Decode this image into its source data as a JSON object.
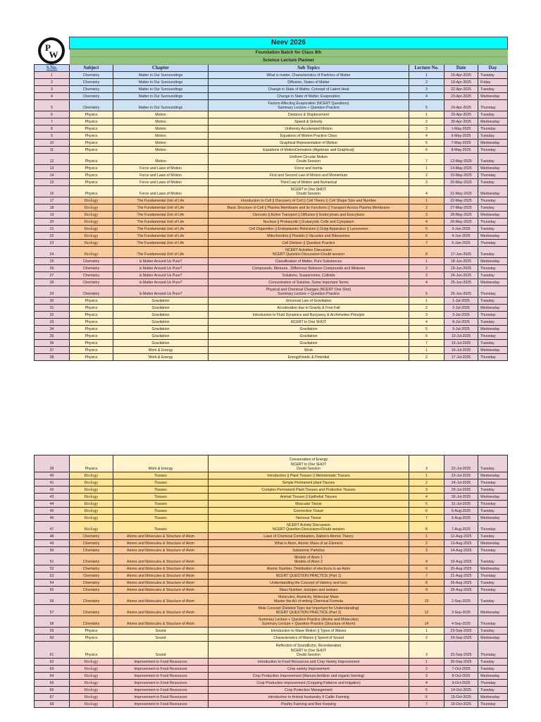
{
  "header": {
    "logo": "pw-logo-icon",
    "title": "Neev 2026",
    "subtitle1": "Foundation Batch for Class 9th",
    "subtitle2": "Science Lecture Planner"
  },
  "columns": [
    "S.No.",
    "Subject",
    "Chapter",
    "Sub Topics",
    "Lecture No.",
    "Date",
    "Day"
  ],
  "colors": {
    "title_bg": "#00ffff",
    "subtitle_bg": "#93c47d",
    "header_bg": "#c9daf8",
    "sno_date_day_bg": "#ead1dc",
    "chemistry_blue": "#cfe2f3",
    "physics_yellow": "#fff2cc",
    "biology_orange": "#f9cb9c",
    "chemistry_pink": "#f4cccc",
    "biology_gold": "#ffe599"
  },
  "page1_rows": [
    {
      "sno": "1",
      "subject": "Chemistry",
      "chapter": "Matter in Our Surroundings",
      "topic": "What  is matter, Characteristics of Particles of Matter",
      "lec": "1",
      "date": "15-Apr-2025",
      "day": "Tuesday",
      "tint": "blue",
      "h": 1
    },
    {
      "sno": "2",
      "subject": "Chemistry",
      "chapter": "Matter in Our Surroundings",
      "topic": "Diffusion, States of Matter",
      "lec": "2",
      "date": "18-Apr-2025",
      "day": "Friday",
      "tint": "blue",
      "h": 1
    },
    {
      "sno": "3",
      "subject": "Chemistry",
      "chapter": "Matter in Our Surroundings",
      "topic": "Change in State of Matter, Concept of Latent Heat",
      "lec": "3",
      "date": "22-Apr-2025",
      "day": "Tuesday",
      "tint": "blue",
      "h": 1
    },
    {
      "sno": "4",
      "subject": "Chemistry",
      "chapter": "Matter in Our Surroundings",
      "topic": "Change in State of Matter, Evaporation",
      "lec": "4",
      "date": "23-Apr-2025",
      "day": "Wednesday",
      "tint": "blue",
      "h": 1
    },
    {
      "sno": "5",
      "subject": "Chemistry",
      "chapter": "Matter in Our Surroundings",
      "topic": "Factors Affecting Evaporation (NCERT Questions)\nSummary Lecture + Question Practice",
      "lec": "5",
      "date": "24-Apr-2025",
      "day": "Thursday",
      "tint": "blue",
      "h": 2
    },
    {
      "sno": "6",
      "subject": "Physics",
      "chapter": "Motion",
      "topic": "Distance & Displacement",
      "lec": "1",
      "date": "29-Apr-2025",
      "day": "Tuesday",
      "tint": "yellow",
      "h": 1
    },
    {
      "sno": "7",
      "subject": "Physics",
      "chapter": "Motion",
      "topic": "Speed & Velocity",
      "lec": "2",
      "date": "30-Apr-2025",
      "day": "Wednesday",
      "tint": "yellow",
      "h": 1
    },
    {
      "sno": "8",
      "subject": "Physics",
      "chapter": "Motion",
      "topic": "Uniformly Accelerated Motion",
      "lec": "3",
      "date": "1-May-2025",
      "day": "Thursday",
      "tint": "yellow",
      "h": 1
    },
    {
      "sno": "9",
      "subject": "Physics",
      "chapter": "Motion",
      "topic": "Equations of Motion Practice Class",
      "lec": "4",
      "date": "6-May-2025",
      "day": "Tuesday",
      "tint": "yellow",
      "h": 1
    },
    {
      "sno": "10",
      "subject": "Physics",
      "chapter": "Motion",
      "topic": "Graphical Representation of Motion",
      "lec": "5",
      "date": "7-May-2025",
      "day": "Wednesday",
      "tint": "yellow",
      "h": 1
    },
    {
      "sno": "11",
      "subject": "Physics",
      "chapter": "Motion",
      "topic": "Equations of MotionDerivation (Algebraic and Graphical)",
      "lec": "6",
      "date": "8-May-2025",
      "day": "Thursday",
      "tint": "yellow",
      "h": 1
    },
    {
      "sno": "12",
      "subject": "Physics",
      "chapter": "Motion",
      "topic": "Uniform Circular Motion\nDoubt Session",
      "lec": "7",
      "date": "13-May-2025",
      "day": "Tuesday",
      "tint": "yellow",
      "h": 2
    },
    {
      "sno": "13",
      "subject": "Physics",
      "chapter": "Force and Laws of Motion",
      "topic": "Force and Inertia",
      "lec": "1",
      "date": "14-May-2025",
      "day": "Wednesday",
      "tint": "yellow",
      "h": 1
    },
    {
      "sno": "14",
      "subject": "Physics",
      "chapter": "Force and Laws of Motion",
      "topic": "First and Second Law of Motion and Momentum",
      "lec": "2",
      "date": "15-May-2025",
      "day": "Thursday",
      "tint": "yellow",
      "h": 1
    },
    {
      "sno": "15",
      "subject": "Physics",
      "chapter": "Force and Laws of Motion",
      "topic": "Third Law of Motion and Numerical",
      "lec": "3",
      "date": "20-May-2025",
      "day": "Tuesday",
      "tint": "yellow",
      "h": 1
    },
    {
      "sno": "16",
      "subject": "Physics",
      "chapter": "Force and Laws of Motion",
      "topic": "NCERT in One SHOT\nDoubt Session",
      "lec": "4",
      "date": "21-May-2025",
      "day": "Wednesday",
      "tint": "yellow",
      "h": 2
    },
    {
      "sno": "17",
      "subject": "Biology",
      "chapter": "The Fundamental Unit of Life",
      "topic": "Introduction to Cell || Discovery of Cell || Cell Theory || Cell Shape Size and Number",
      "lec": "1",
      "date": "22-May-2025",
      "day": "Thursday",
      "tint": "orange",
      "h": 1
    },
    {
      "sno": "18",
      "subject": "Biology",
      "chapter": "The Fundamental Unit of Life",
      "topic": "Basic Structure of Cell || Plasma Membrane and its Functions || Transport Across Plasma Membrane",
      "lec": "2",
      "date": "27-May-2025",
      "day": "Tuesday",
      "tint": "orange",
      "h": 1
    },
    {
      "sno": "19",
      "subject": "Biology",
      "chapter": "The Fundamental Unit of Life",
      "topic": "Osmosis || Active Transport || Diffusion || Endocytosis and Exocytosis",
      "lec": "3",
      "date": "28-May-2025",
      "day": "Wednesday",
      "tint": "orange",
      "h": 1
    },
    {
      "sno": "20",
      "subject": "Biology",
      "chapter": "The Fundamental Unit of Life",
      "topic": "Nucleus || Prokaryotic || Eukaryotic Cells and Cytoplasm",
      "lec": "4",
      "date": "29-May-2025",
      "day": "Thursday",
      "tint": "orange",
      "h": 1
    },
    {
      "sno": "21",
      "subject": "Biology",
      "chapter": "The Fundamental Unit of Life",
      "topic": "Cell Organelles || Endoplasmic Reticulum || Golgi Apparatus || Lysosomes",
      "lec": "5",
      "date": "3-Jun-2025",
      "day": "Tuesday",
      "tint": "orange",
      "h": 1
    },
    {
      "sno": "22",
      "subject": "Biology",
      "chapter": "The Fundamental Unit of Life",
      "topic": "Mitochondria || Plastids || Vacuoles and Ribosomes",
      "lec": "6",
      "date": "4-Jun-2025",
      "day": "Wednesday",
      "tint": "orange",
      "h": 1
    },
    {
      "sno": "23",
      "subject": "Biology",
      "chapter": "The Fundamental Unit of Life",
      "topic": "Cell Division || Question Practice",
      "lec": "7",
      "date": "5-Jun-2025",
      "day": "Thursday",
      "tint": "orange",
      "h": 1
    },
    {
      "sno": "24",
      "subject": "Biology",
      "chapter": "The Fundamental Unit of Life",
      "topic": "NCERT Activities Discussion\nNCERT Question Discussion+Doubt session",
      "lec": "8",
      "date": "17-Jun-2025",
      "day": "Tuesday",
      "tint": "orange",
      "h": 2
    },
    {
      "sno": "25",
      "subject": "Chemistry",
      "chapter": "Is Matter Around Us Pure?",
      "topic": "Classification of Matter, Pure Substances",
      "lec": "1",
      "date": "18-Jun-2025",
      "day": "Wednesday",
      "tint": "pink",
      "h": 1
    },
    {
      "sno": "26",
      "subject": "Chemistry",
      "chapter": "Is Matter Around Us Pure?",
      "topic": "Compounds, Mixtures , Difference Between Compounds and Mixtures",
      "lec": "2",
      "date": "19-Jun-2025",
      "day": "Thursday",
      "tint": "pink",
      "h": 1
    },
    {
      "sno": "27",
      "subject": "Chemistry",
      "chapter": "Is Matter Around Us Pure?",
      "topic": "Solutions, Suspensions, Colloids",
      "lec": "3",
      "date": "24-Jun-2025",
      "day": "Tuesday",
      "tint": "pink",
      "h": 1
    },
    {
      "sno": "28",
      "subject": "Chemistry",
      "chapter": "Is Matter Around Us Pure?",
      "topic": "Concentration of Solution, Some Important Terms",
      "lec": "4",
      "date": "25-Jun-2025",
      "day": "Wednesday",
      "tint": "pink",
      "h": 1
    },
    {
      "sno": "29",
      "subject": "Chemistry",
      "chapter": "Is Matter Around Us Pure?",
      "topic": "Physical and Chemical Changes (NCERT One Shot)\nSummary Lecture + Question Practice",
      "lec": "5",
      "date": "26-Jun-2025",
      "day": "Thursday",
      "tint": "pink",
      "h": 2
    },
    {
      "sno": "30",
      "subject": "Physics",
      "chapter": "Gravitation",
      "topic": "Universal Law of Gravitation",
      "lec": "1",
      "date": "1-Jul-2025",
      "day": "Tuesday",
      "tint": "yellow",
      "h": 1
    },
    {
      "sno": "31",
      "subject": "Physics",
      "chapter": "Gravitation",
      "topic": "Acceleration due to Gravity & Free Fall",
      "lec": "2",
      "date": "2-Jul-2025",
      "day": "Wednesday",
      "tint": "yellow",
      "h": 1
    },
    {
      "sno": "32",
      "subject": "Physics",
      "chapter": "Gravitation",
      "topic": "Introduction to Fluid Dynamics and Buoyancy & Archimedes Principle",
      "lec": "3",
      "date": "3-Jul-2025",
      "day": "Thursday",
      "tint": "yellow",
      "h": 1
    },
    {
      "sno": "33",
      "subject": "Physics",
      "chapter": "Gravitation",
      "topic": "NCERT in One SHOT",
      "lec": "4",
      "date": "8-Jul-2025",
      "day": "Tuesday",
      "tint": "yellow",
      "h": 1
    },
    {
      "sno": "34",
      "subject": "Physics",
      "chapter": "Gravitation",
      "topic": "Gravitation",
      "lec": "5",
      "date": "9-Jul-2025",
      "day": "Wednesday",
      "tint": "yellow",
      "h": 1
    },
    {
      "sno": "35",
      "subject": "Physics",
      "chapter": "Gravitation",
      "topic": "Gravitation",
      "lec": "6",
      "date": "10-Jul-2025",
      "day": "Thursday",
      "tint": "yellow",
      "h": 1
    },
    {
      "sno": "36",
      "subject": "Physics",
      "chapter": "Gravitation",
      "topic": "Gravitation",
      "lec": "7",
      "date": "15-Jul-2025",
      "day": "Tuesday",
      "tint": "yellow",
      "h": 1
    },
    {
      "sno": "37",
      "subject": "Physics",
      "chapter": "Work & Energy",
      "topic": "Work",
      "lec": "1",
      "date": "16-Jul-2025",
      "day": "Wednesday",
      "tint": "yellow",
      "h": 1
    },
    {
      "sno": "38",
      "subject": "Physics",
      "chapter": "Work & Energy",
      "topic": "EnergyKinetic & Potential",
      "lec": "2",
      "date": "17-Jul-2025",
      "day": "Thursday",
      "tint": "yellow",
      "h": 1
    }
  ],
  "page2_rows": [
    {
      "sno": "39",
      "subject": "Physics",
      "chapter": "Work & Energy",
      "topic": "Conservation of Energy\nNCERT in One SHOT\nDoubt Session",
      "lec": "3",
      "date": "22-Jul-2025",
      "day": "Tuesday",
      "tint": "cream",
      "h": 3
    },
    {
      "sno": "40",
      "subject": "Biology",
      "chapter": "Tissues",
      "topic": "Introduction || Plant Tissues || Meristematic Tissues",
      "lec": "1",
      "date": "23-Jul-2025",
      "day": "Wednesday",
      "tint": "gold",
      "h": 1
    },
    {
      "sno": "41",
      "subject": "Biology",
      "chapter": "Tissues",
      "topic": "Simple Permanent plant Tissues",
      "lec": "2",
      "date": "24-Jul-2025",
      "day": "Thursday",
      "tint": "gold",
      "h": 1
    },
    {
      "sno": "42",
      "subject": "Biology",
      "chapter": "Tissues",
      "topic": "Complex Permanent Plant Tissues and Protective Tissues",
      "lec": "3",
      "date": "29-Jul-2025",
      "day": "Tuesday",
      "tint": "gold",
      "h": 1
    },
    {
      "sno": "43",
      "subject": "Biology",
      "chapter": "Tissues",
      "topic": "Animal Tissues || Epithelial Tissues",
      "lec": "4",
      "date": "30-Jul-2025",
      "day": "Wednesday",
      "tint": "gold",
      "h": 1
    },
    {
      "sno": "44",
      "subject": "Biology",
      "chapter": "Tissues",
      "topic": "Muscular Tissue",
      "lec": "5",
      "date": "31-Jul-2025",
      "day": "Thursday",
      "tint": "gold",
      "h": 1
    },
    {
      "sno": "45",
      "subject": "Biology",
      "chapter": "Tissues",
      "topic": "Connective Tissue",
      "lec": "6",
      "date": "5-Aug-2025",
      "day": "Tuesday",
      "tint": "gold",
      "h": 1
    },
    {
      "sno": "46",
      "subject": "Biology",
      "chapter": "Tissues",
      "topic": "Nervous Tissue",
      "lec": "7",
      "date": "6-Aug-2025",
      "day": "Wednesday",
      "tint": "gold",
      "h": 1
    },
    {
      "sno": "47",
      "subject": "Biology",
      "chapter": "Tissues",
      "topic": "NCERT Activity Discussion\nNCERT Question Discussion+Doubt session",
      "lec": "8",
      "date": "7-Aug-2025",
      "day": "Thursday",
      "tint": "gold",
      "h": 2
    },
    {
      "sno": "48",
      "subject": "Chemistry",
      "chapter": "Atoms and Molecules & Structure of Atom",
      "topic": "Laws of Chemical Combination, Dalton's Atomic Theory",
      "lec": "1",
      "date": "12-Aug-2025",
      "day": "Tuesday",
      "tint": "orange",
      "h": 1
    },
    {
      "sno": "49",
      "subject": "Chemistry",
      "chapter": "Atoms and Molecules & Structure of Atom",
      "topic": "What is Atom, Atomic Mass of an Element",
      "lec": "2",
      "date": "13-Aug-2025",
      "day": "Wednesday",
      "tint": "orange",
      "h": 1
    },
    {
      "sno": "50",
      "subject": "Chemistry",
      "chapter": "Atoms and Molecules & Structure of Atom",
      "topic": "Subatomic Particles",
      "lec": "3",
      "date": "14-Aug-2025",
      "day": "Thursday",
      "tint": "orange",
      "h": 1
    },
    {
      "sno": "51",
      "subject": "Chemistry",
      "chapter": "Atoms and Molecules & Structure of Atom",
      "topic": "Models of Atom 1\nModels of Atom 2",
      "lec": "4",
      "date": "19-Aug-2025",
      "day": "Tuesday",
      "tint": "orange",
      "h": 2
    },
    {
      "sno": "52",
      "subject": "Chemistry",
      "chapter": "Atoms and Molecules & Structure of Atom",
      "topic": "Atomic Number, Distribution of electrons in an Atom",
      "lec": "6",
      "date": "20-Aug-2025",
      "day": "Wednesday",
      "tint": "orange",
      "h": 1
    },
    {
      "sno": "53",
      "subject": "Chemistry",
      "chapter": "Atoms and Molecules & Structure of Atom",
      "topic": "NCERT QUESTION PRACTICE (Part 1)",
      "lec": "7",
      "date": "21-Aug-2025",
      "day": "Thursday",
      "tint": "orange",
      "h": 1
    },
    {
      "sno": "54",
      "subject": "Chemistry",
      "chapter": "Atoms and Molecules & Structure of Atom",
      "topic": "Understanding the Concept of Valency and Ions",
      "lec": "8",
      "date": "26-Aug-2025",
      "day": "Tuesday",
      "tint": "orange",
      "h": 1
    },
    {
      "sno": "55",
      "subject": "Chemistry",
      "chapter": "Atoms and Molecules & Structure of Atom",
      "topic": "Mass Number, Isotopes and Isobars",
      "lec": "9",
      "date": "28-Aug-2025",
      "day": "Thursday",
      "tint": "orange",
      "h": 1
    },
    {
      "sno": "56",
      "subject": "Chemistry",
      "chapter": "Atoms and Molecules & Structure of Atom",
      "topic": "Molecules, Atomicity, Molecular Mass\nMaster the Art of writing Chemical Formula",
      "lec": "10",
      "date": "2-Sep-2025",
      "day": "Tuesday",
      "tint": "orange",
      "h": 2
    },
    {
      "sno": "57",
      "subject": "Chemistry",
      "chapter": "Atoms and Molecules & Structure of Atom",
      "topic": "Mole Concept (Deleted Topic but Important for Understanding)\nNCERT QUESTION PRACTICE (Part 2)",
      "lec": "12",
      "date": "3-Sep-2025",
      "day": "Wednesday",
      "tint": "orange",
      "h": 2
    },
    {
      "sno": "58",
      "subject": "Chemistry",
      "chapter": "Atoms and Molecules & Structure of Atom",
      "topic": "Summary Lecture + Question Practice (Atoms and Molecules)\nSummary Lecture + Question Practice (Structure of Atom)",
      "lec": "14",
      "date": "4-Sep-2025",
      "day": "Thursday",
      "tint": "orange",
      "h": 2
    },
    {
      "sno": "59",
      "subject": "Physics",
      "chapter": "Sound",
      "topic": "Introduction to Wave Motion || Types of Waves",
      "lec": "1",
      "date": "23-Sep-2025",
      "day": "Tuesday",
      "tint": "cream",
      "h": 1
    },
    {
      "sno": "60",
      "subject": "Physics",
      "chapter": "Sound",
      "topic": "Characteristics of Waves || Speed of Sound",
      "lec": "2",
      "date": "24-Sep-2025",
      "day": "Wednesday",
      "tint": "cream",
      "h": 1
    },
    {
      "sno": "61",
      "subject": "Physics",
      "chapter": "Sound",
      "topic": "Reflection of SoundEcho, Reverberation\nNCERT in One SHOT\nDoubt Session",
      "lec": "3",
      "date": "25-Sep-2025",
      "day": "Thursday",
      "tint": "cream",
      "h": 3
    },
    {
      "sno": "62",
      "subject": "Biology",
      "chapter": "Improvement in Food Resources",
      "topic": "Introduction to Food Resources and Crop Variety Improvement",
      "lec": "1",
      "date": "30-Sep-2025",
      "day": "Tuesday",
      "tint": "pink",
      "h": 1
    },
    {
      "sno": "63",
      "subject": "Biology",
      "chapter": "Improvement in Food Resources",
      "topic": "Crop variety Improvement",
      "lec": "2",
      "date": "7-Oct-2025",
      "day": "Tuesday",
      "tint": "pink",
      "h": 1
    },
    {
      "sno": "64",
      "subject": "Biology",
      "chapter": "Improvement in Food Resources",
      "topic": "Crop Production Improvement (Manure,fertilizer and organic farming)",
      "lec": "3",
      "date": "8-Oct-2025",
      "day": "Wednesday",
      "tint": "pink",
      "h": 1
    },
    {
      "sno": "65",
      "subject": "Biology",
      "chapter": "Improvement in Food Resources",
      "topic": "Crop Production Improvement (Cropping Patterns and irrigation)",
      "lec": "4",
      "date": "9-Oct-2025",
      "day": "Thursday",
      "tint": "pink",
      "h": 1
    },
    {
      "sno": "66",
      "subject": "Biology",
      "chapter": "Improvement in Food Resources",
      "topic": "Crop Protection Management",
      "lec": "5",
      "date": "14-Oct-2025",
      "day": "Tuesday",
      "tint": "pink",
      "h": 1
    },
    {
      "sno": "67",
      "subject": "Biology",
      "chapter": "Improvement in Food Resources",
      "topic": "Introduction to Animal husbandry II Cattle Farming",
      "lec": "6",
      "date": "15-Oct-2025",
      "day": "Wednesday",
      "tint": "pink",
      "h": 1
    },
    {
      "sno": "68",
      "subject": "Biology",
      "chapter": "Improvement in Food Resources",
      "topic": "Poultry Farming and Bee Keeping",
      "lec": "7",
      "date": "16-Oct-2025",
      "day": "Thursday",
      "tint": "pink",
      "h": 1
    }
  ]
}
